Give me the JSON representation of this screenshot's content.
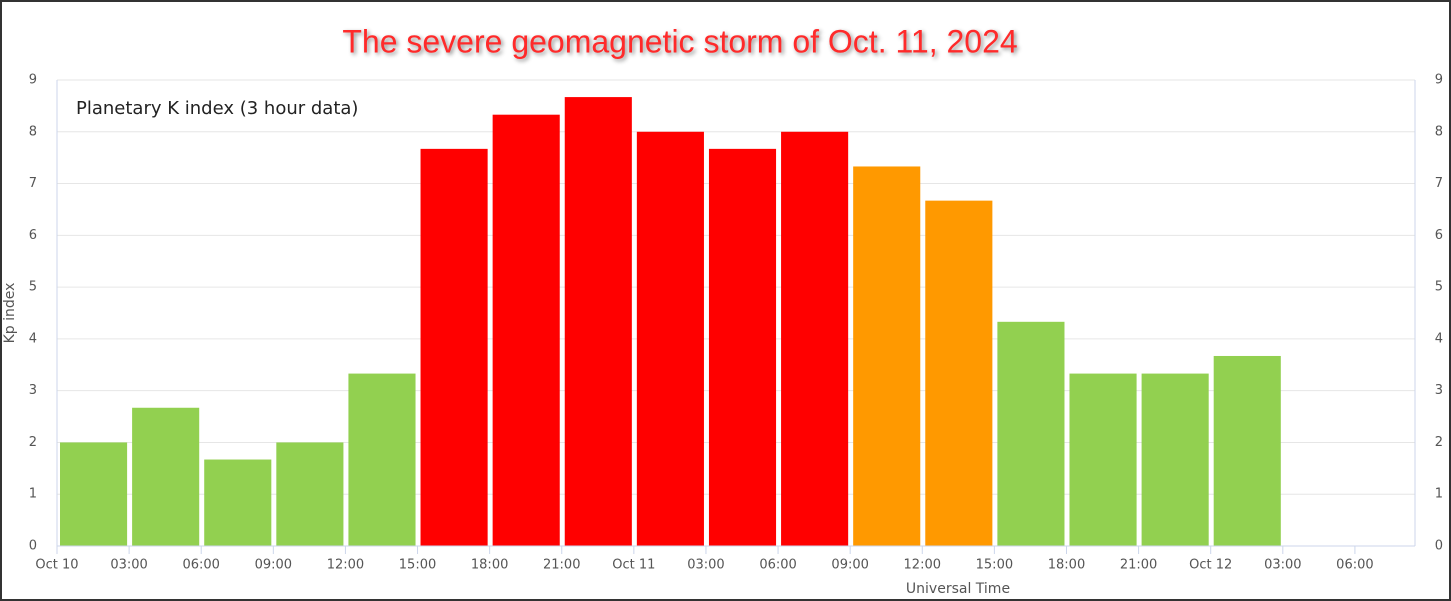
{
  "chart_data": {
    "type": "histogram",
    "title": "The severe geomagnetic storm of Oct. 11, 2024",
    "annotation": "Planetary K index (3 hour data)",
    "x_label": "Universal Time",
    "y_label": "Kp index",
    "bins": [
      0,
      3,
      6,
      9,
      12,
      15,
      18,
      21,
      24,
      27,
      30,
      33,
      36,
      39,
      42,
      45,
      48,
      51
    ],
    "values": [
      2.0,
      2.67,
      1.67,
      2.0,
      3.33,
      7.67,
      8.33,
      8.67,
      8.0,
      7.67,
      8.0,
      7.33,
      6.67,
      4.33,
      3.33,
      3.33,
      3.67
    ],
    "colors": [
      "#92d050",
      "#92d050",
      "#92d050",
      "#92d050",
      "#92d050",
      "#ff0000",
      "#ff0000",
      "#ff0000",
      "#ff0000",
      "#ff0000",
      "#ff0000",
      "#ff9900",
      "#ff9900",
      "#92d050",
      "#92d050",
      "#92d050",
      "#92d050"
    ],
    "xlim": [
      0,
      56.5
    ],
    "xticks": [
      {
        "value": 0,
        "label": "Oct 10"
      },
      {
        "value": 3,
        "label": "03:00"
      },
      {
        "value": 6,
        "label": "06:00"
      },
      {
        "value": 9,
        "label": "09:00"
      },
      {
        "value": 12,
        "label": "12:00"
      },
      {
        "value": 15,
        "label": "15:00"
      },
      {
        "value": 18,
        "label": "18:00"
      },
      {
        "value": 21,
        "label": "21:00"
      },
      {
        "value": 24,
        "label": "Oct 11"
      },
      {
        "value": 27,
        "label": "03:00"
      },
      {
        "value": 30,
        "label": "06:00"
      },
      {
        "value": 33,
        "label": "09:00"
      },
      {
        "value": 36,
        "label": "12:00"
      },
      {
        "value": 39,
        "label": "15:00"
      },
      {
        "value": 42,
        "label": "18:00"
      },
      {
        "value": 45,
        "label": "21:00"
      },
      {
        "value": 48,
        "label": "Oct 12"
      },
      {
        "value": 51,
        "label": "03:00"
      },
      {
        "value": 54,
        "label": "06:00"
      }
    ],
    "ylim": [
      0,
      9
    ],
    "yticks": [
      0,
      1,
      2,
      3,
      4,
      5,
      6,
      7,
      8,
      9
    ],
    "grid": true
  }
}
